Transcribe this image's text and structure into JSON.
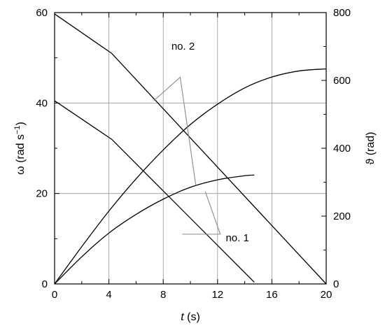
{
  "chart_data": {
    "type": "line",
    "x": {
      "label_italic": "t",
      "label_unit": " (s)",
      "range": [
        0,
        20
      ],
      "ticks": [
        0,
        4,
        8,
        12,
        16,
        20
      ]
    },
    "y_left": {
      "label": "ω (rad s",
      "label_sup": "−1",
      "label_end": ")",
      "range": [
        0,
        60
      ],
      "ticks": [
        0,
        20,
        40,
        60
      ]
    },
    "y_right": {
      "label": "ϑ (rad)",
      "range": [
        0,
        800
      ],
      "ticks": [
        0,
        200,
        400,
        600,
        800
      ]
    },
    "grid": true,
    "series": [
      {
        "name": "no. 2",
        "axis": "left",
        "quantity": "omega",
        "points": [
          [
            0,
            59.7
          ],
          [
            4.2,
            51.0
          ],
          [
            20,
            0
          ]
        ]
      },
      {
        "name": "no. 1",
        "axis": "left",
        "quantity": "omega",
        "points": [
          [
            0,
            40.5
          ],
          [
            4.2,
            32.0
          ],
          [
            14.7,
            0.4
          ]
        ]
      },
      {
        "name": "no. 2",
        "axis": "right",
        "quantity": "theta",
        "points": [
          [
            0,
            0
          ],
          [
            2,
            110
          ],
          [
            4,
            215
          ],
          [
            6,
            310
          ],
          [
            8,
            395
          ],
          [
            10,
            470
          ],
          [
            12,
            530
          ],
          [
            14,
            578
          ],
          [
            16,
            610
          ],
          [
            18,
            628
          ],
          [
            20,
            634
          ]
        ]
      },
      {
        "name": "no. 1",
        "axis": "right",
        "quantity": "theta",
        "points": [
          [
            0,
            0
          ],
          [
            2,
            80
          ],
          [
            4,
            150
          ],
          [
            6,
            205
          ],
          [
            8,
            250
          ],
          [
            10,
            285
          ],
          [
            12,
            307
          ],
          [
            14,
            319
          ],
          [
            14.7,
            321
          ]
        ]
      }
    ],
    "annotations": [
      {
        "text": "no. 2",
        "target_series": [
          0,
          2
        ]
      },
      {
        "text": "no. 1",
        "target_series": [
          1,
          3
        ]
      }
    ]
  }
}
